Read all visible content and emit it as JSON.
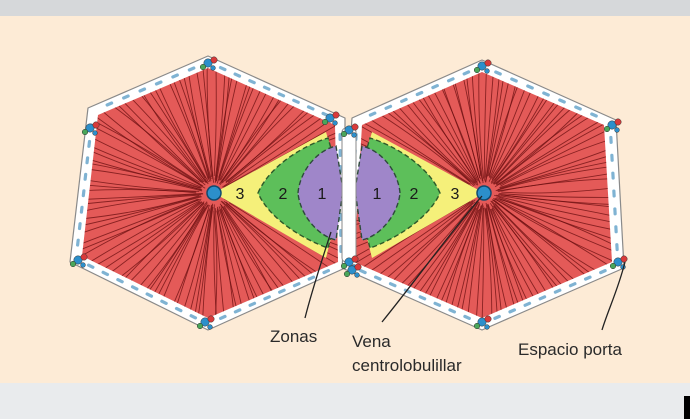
{
  "colors": {
    "top_bar": "#d6d8da",
    "background": "#fdebd6",
    "bottom_bar": "#e9ebed",
    "parenchyma": "#e45a58",
    "sinusoid_lines": "#6b0f10",
    "zone_3": "#f5f07a",
    "zone_2": "#5dbf5a",
    "zone_1": "#9f86c9",
    "septum": "#ffffff",
    "septum_outline": "#8a8a8a",
    "central_vein": "#2c8fcb",
    "portal_blue": "#2c8fcb",
    "portal_red": "#d83a3a",
    "portal_green": "#4aa65a"
  },
  "diagram": {
    "left_lobule_zones": [
      "3",
      "2",
      "1"
    ],
    "right_lobule_zones": [
      "1",
      "2",
      "3"
    ],
    "callouts": {
      "zonas": "Zonas",
      "vena_line1": "Vena",
      "vena_line2": "centrolobulillar",
      "espacio_porta": "Espacio porta"
    }
  }
}
